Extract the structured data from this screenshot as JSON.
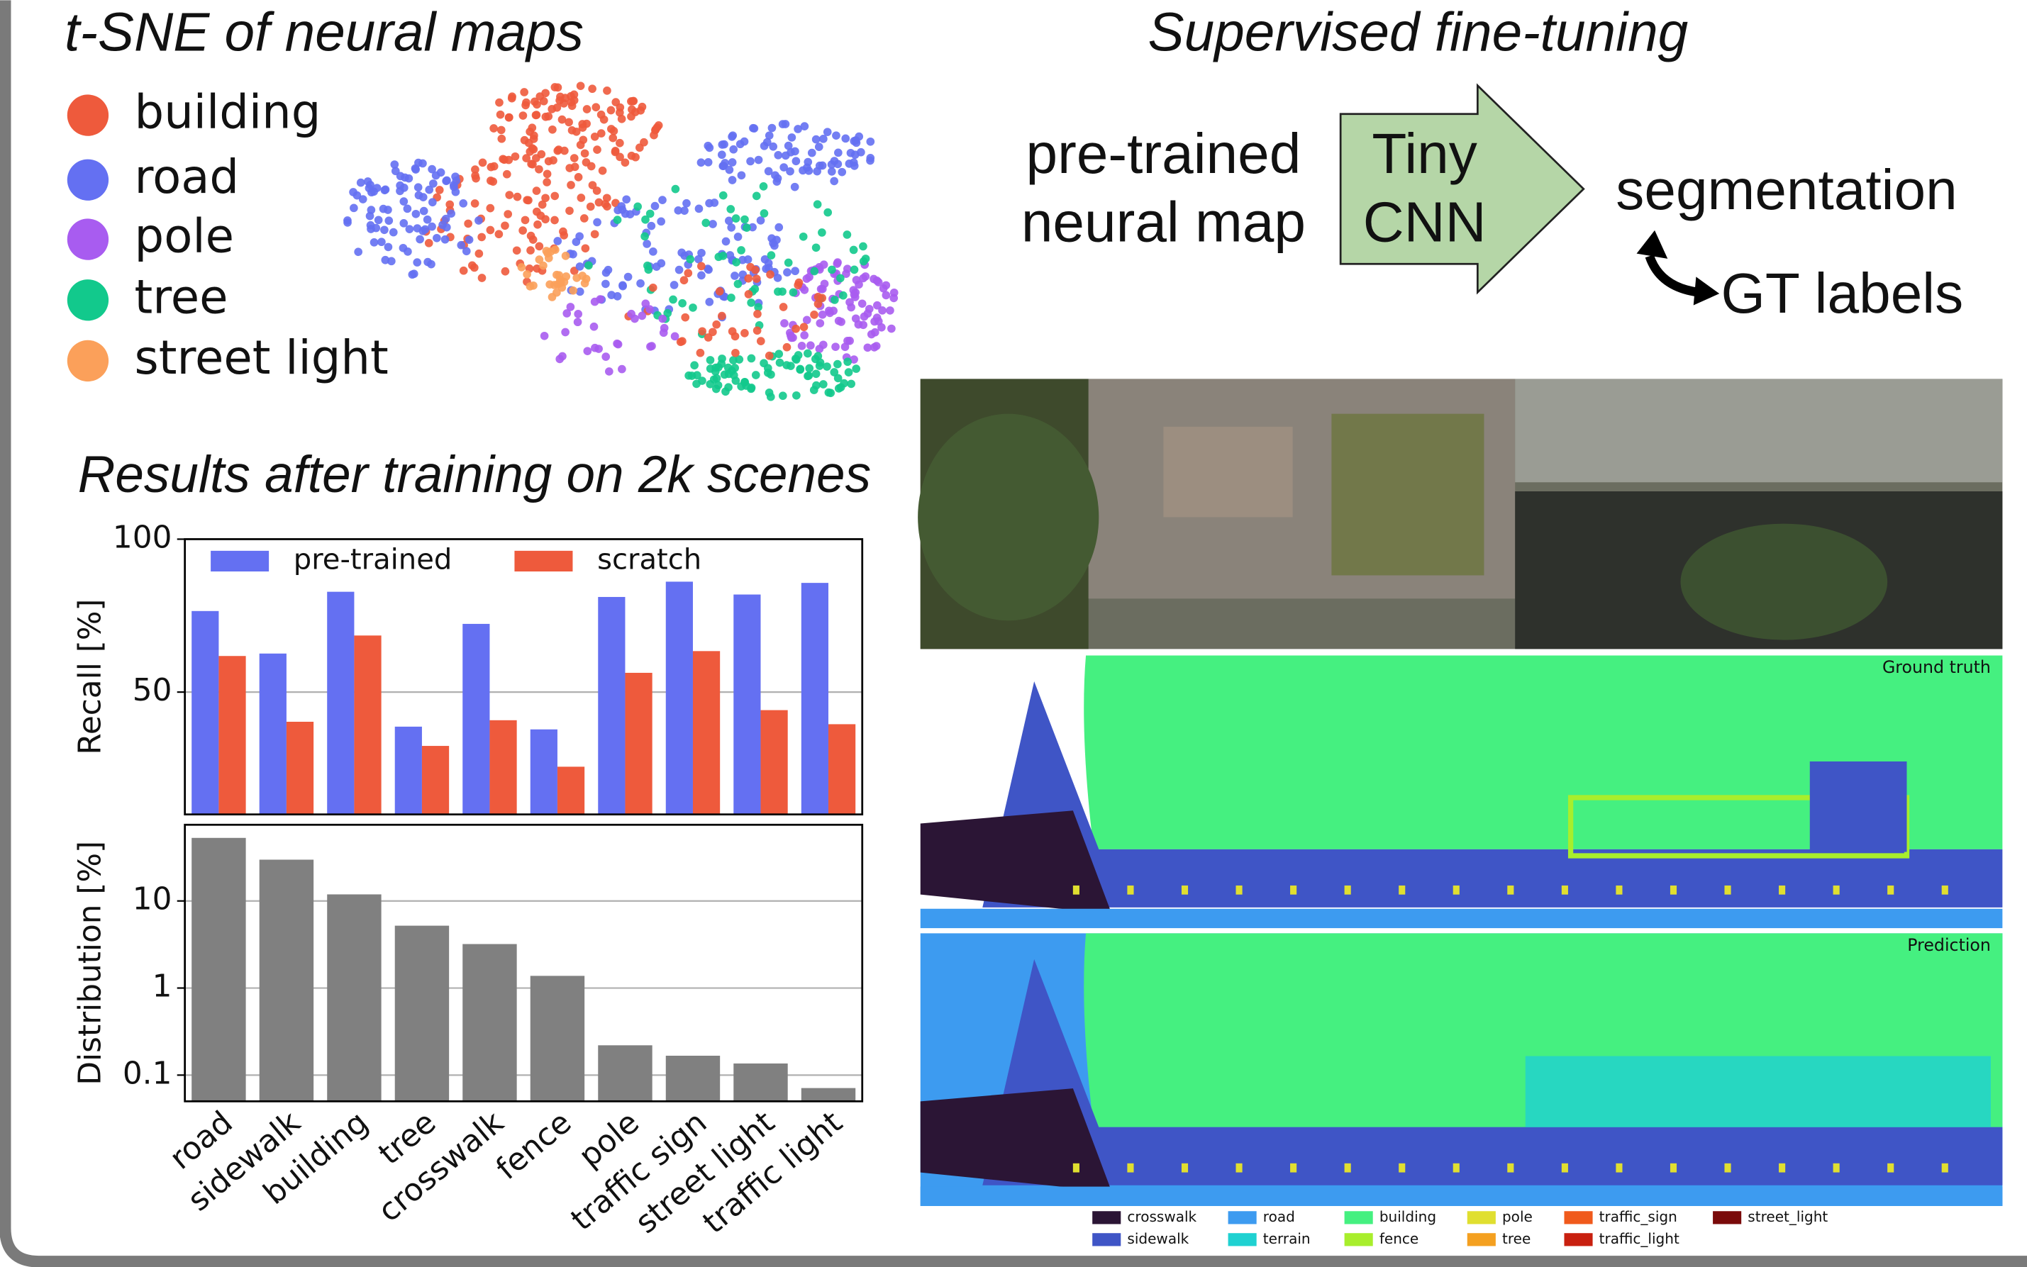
{
  "tsne": {
    "title": "t-SNE of neural maps",
    "classes": [
      {
        "name": "building",
        "color": "#ee5a3c"
      },
      {
        "name": "road",
        "color": "#6470f2"
      },
      {
        "name": "pole",
        "color": "#a85cf0"
      },
      {
        "name": "tree",
        "color": "#12c98c"
      },
      {
        "name": "street light",
        "color": "#fba05a"
      }
    ]
  },
  "diagram": {
    "title": "Supervised fine-tuning",
    "input": [
      "pre-trained",
      "neural map"
    ],
    "model": [
      "Tiny",
      "CNN"
    ],
    "output": "segmentation",
    "target": "GT labels"
  },
  "panels": [
    "Ground truth",
    "Prediction"
  ],
  "segmentation_legend": [
    {
      "name": "crosswalk",
      "color": "#2b1535"
    },
    {
      "name": "sidewalk",
      "color": "#3f55c6"
    },
    {
      "name": "road",
      "color": "#3d9bf0"
    },
    {
      "name": "terrain",
      "color": "#1fd1d1"
    },
    {
      "name": "building",
      "color": "#45f080"
    },
    {
      "name": "fence",
      "color": "#a8ee2c"
    },
    {
      "name": "pole",
      "color": "#e0df30"
    },
    {
      "name": "tree",
      "color": "#f4a020"
    },
    {
      "name": "traffic_sign",
      "color": "#f05a1c"
    },
    {
      "name": "traffic_light",
      "color": "#c8200f"
    },
    {
      "name": "street_light",
      "color": "#7a0a0a"
    }
  ],
  "chart_data": [
    {
      "type": "bar",
      "title": "Results after training on 2k scenes",
      "y_label": "Recall [%]",
      "categories": [
        null,
        null,
        null,
        null,
        null,
        null,
        null,
        null,
        null,
        null
      ],
      "series": [
        {
          "name": "pre-trained",
          "color": "#6470f2",
          "values": [
            76.5,
            62.6,
            82.8,
            38.7,
            72.3,
            37.8,
            81.1,
            86.1,
            81.9,
            85.7
          ]
        },
        {
          "name": "scratch",
          "color": "#ee5a3c",
          "values": [
            61.8,
            40.3,
            68.5,
            32.4,
            40.8,
            25.6,
            56.3,
            63.4,
            44.1,
            39.5
          ]
        }
      ],
      "ylim": [
        10,
        100
      ],
      "yticks": [
        50,
        100
      ],
      "grid": true,
      "legend": "top"
    },
    {
      "type": "bar",
      "y_label": "Distribution [%]",
      "log_scale": true,
      "categories": [
        "road",
        "sidewalk",
        "building",
        "tree",
        "crosswalk",
        "fence",
        "pole",
        "traffic sign",
        "street light",
        "traffic light"
      ],
      "values": [
        53,
        29.8,
        11.9,
        5.2,
        3.2,
        1.38,
        0.22,
        0.167,
        0.136,
        0.071
      ],
      "color": "#808080",
      "ylim": [
        0.05,
        75
      ],
      "yticks": [
        0.1,
        1,
        10
      ],
      "grid": true
    }
  ]
}
